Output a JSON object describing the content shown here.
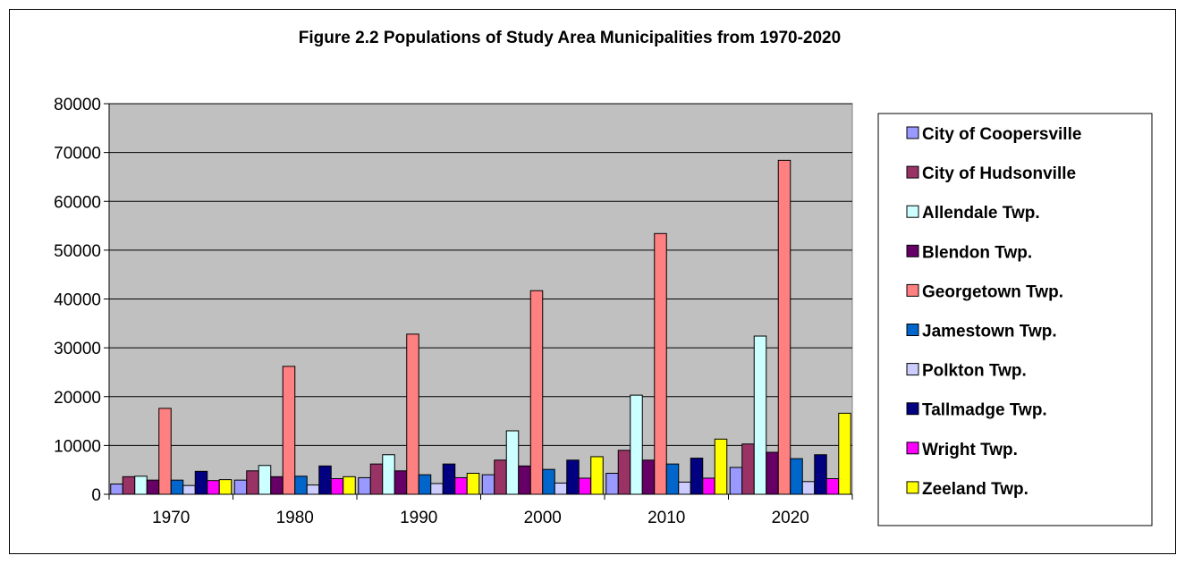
{
  "chart_data": {
    "type": "bar",
    "title": "Figure 2.2 Populations of Study Area Municipalities from 1970-2020",
    "xlabel": "",
    "ylabel": "",
    "ylim": [
      0,
      80000
    ],
    "yticks": [
      "0",
      "10000",
      "20000",
      "30000",
      "40000",
      "50000",
      "60000",
      "70000",
      "80000"
    ],
    "categories": [
      "1970",
      "1980",
      "1990",
      "2000",
      "2010",
      "2020"
    ],
    "grid": true,
    "legend_position": "right",
    "series": [
      {
        "name": "City of Coopersville",
        "color": "#9999ff",
        "values": [
          2100,
          2900,
          3400,
          4000,
          4300,
          5500
        ]
      },
      {
        "name": "City of Hudsonville",
        "color": "#993366",
        "values": [
          3600,
          4800,
          6200,
          7000,
          9000,
          10300
        ]
      },
      {
        "name": "Allendale Twp.",
        "color": "#ccffff",
        "values": [
          3700,
          5900,
          8100,
          13000,
          20300,
          32400
        ]
      },
      {
        "name": "Blendon Twp.",
        "color": "#660066",
        "values": [
          2900,
          3600,
          4800,
          5800,
          7000,
          8600
        ]
      },
      {
        "name": "Georgetown Twp.",
        "color": "#ff8080",
        "values": [
          17600,
          26200,
          32800,
          41700,
          53400,
          68400
        ]
      },
      {
        "name": "Jamestown Twp.",
        "color": "#0066cc",
        "values": [
          2900,
          3700,
          4000,
          5100,
          6200,
          7300
        ]
      },
      {
        "name": "Polkton Twp.",
        "color": "#ccccff",
        "values": [
          1800,
          1900,
          2200,
          2300,
          2500,
          2600
        ]
      },
      {
        "name": "Tallmadge Twp.",
        "color": "#000080",
        "values": [
          4700,
          5800,
          6200,
          7000,
          7400,
          8100
        ]
      },
      {
        "name": "Wright Twp.",
        "color": "#ff00ff",
        "values": [
          2800,
          3200,
          3400,
          3300,
          3300,
          3200
        ]
      },
      {
        "name": "Zeeland Twp.",
        "color": "#ffff00",
        "values": [
          3000,
          3600,
          4300,
          7700,
          11300,
          16600
        ]
      }
    ]
  }
}
